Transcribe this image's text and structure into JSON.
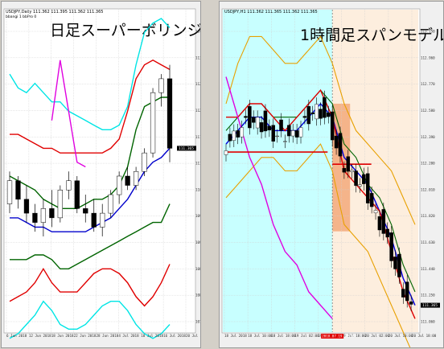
{
  "charts": {
    "left": {
      "symbol_label": "USDJPY,Daily",
      "ohlc_label": "111.362 111.395 111.362 111.365",
      "indicator_label": "bbangi 1 bbPro 0",
      "big_title": "日足スーパーボリンジャー",
      "y_ticks": [
        "114.090",
        "113.485",
        "112.880",
        "112.275",
        "111.670",
        "111.065",
        "110.460",
        "109.855",
        "109.250",
        "108.645",
        "108.040",
        "107.435"
      ],
      "x_ticks": [
        "6 Jun 2018",
        "12 Jun 2018",
        "18 Jun 2018",
        "22 Jun 2018",
        "28 Jun 2018",
        "4 Jul 2018",
        "10 Jul 2018",
        "16 Jul 2018",
        "20 Jul 2018"
      ],
      "price_tag": "111.365"
    },
    "right": {
      "symbol_label": "USDJPY,H1",
      "ohlc_label": "111.362 111.365 111.362 111.365",
      "big_title": "1時間足スパンモデル",
      "y_ticks": [
        "113.150",
        "112.960",
        "112.770",
        "112.580",
        "112.390",
        "112.200",
        "112.010",
        "111.820",
        "111.630",
        "111.440",
        "111.250",
        "111.060"
      ],
      "x_ticks": [
        "18 Jul 2018",
        "18 Jul 10:00",
        "18 Jul 18:00",
        "19 Jul 02:00",
        "19 Jul 10:00",
        "19 Jul 18:00",
        "20 Jul 02:00",
        "20 Jul 10:00",
        "20 Jul 18:00"
      ],
      "x_highlight": "2018.07.19 20:00",
      "price_tag": "111.365"
    }
  },
  "colors": {
    "daily_upper3": "#00e5e5",
    "daily_upper2": "#e00000",
    "daily_upper1": "#006400",
    "daily_mid": "#0000cc",
    "daily_lower1": "#006400",
    "daily_lower2": "#e00000",
    "daily_lower3": "#00e5e5",
    "chikou": "#e000e0",
    "span_red": "#e00000",
    "span_blue": "#0000dd",
    "hour_outer": "#e8a000",
    "hour_mid": "#006400",
    "cyan_bg": "#c8ffff",
    "peach_bg": "#fdeede",
    "orange_box": "#f5b48a"
  },
  "chart_data": [
    {
      "type": "line",
      "title": "日足スーパーボリンジャー",
      "symbol": "USDJPY,Daily",
      "x_range": [
        "2018-06-06",
        "2018-07-20"
      ],
      "ylim": [
        107.435,
        114.39
      ],
      "series": [
        {
          "values": [
            113.0,
            112.7,
            112.6,
            112.8,
            112.6,
            112.4,
            112.4,
            112.2,
            112.1,
            112.0,
            111.9,
            111.8,
            111.8,
            111.9,
            112.3,
            113.2,
            113.9,
            114.1,
            114.2,
            114.0
          ]
        },
        {
          "values": [
            111.7,
            111.7,
            111.6,
            111.5,
            111.4,
            111.4,
            111.3,
            111.3,
            111.3,
            111.3,
            111.3,
            111.3,
            111.4,
            111.6,
            112.2,
            112.9,
            113.2,
            113.3,
            113.2,
            113.1
          ]
        },
        {
          "values": [
            110.8,
            110.7,
            110.6,
            110.5,
            110.3,
            110.2,
            110.1,
            110.1,
            110.1,
            110.2,
            110.3,
            110.3,
            110.4,
            110.6,
            111.0,
            111.8,
            112.3,
            112.4,
            112.5,
            112.5
          ]
        },
        {
          "values": [
            109.9,
            109.9,
            109.8,
            109.7,
            109.7,
            109.6,
            109.6,
            109.6,
            109.6,
            109.6,
            109.7,
            109.8,
            109.9,
            110.1,
            110.3,
            110.6,
            110.9,
            111.1,
            111.2,
            111.4
          ]
        },
        {
          "values": [
            109.0,
            109.0,
            109.0,
            109.1,
            109.1,
            109.0,
            108.8,
            108.8,
            108.9,
            109.0,
            109.1,
            109.2,
            109.3,
            109.4,
            109.5,
            109.6,
            109.7,
            109.8,
            109.8,
            110.2
          ]
        },
        {
          "values": [
            108.1,
            108.2,
            108.3,
            108.5,
            108.8,
            108.5,
            108.3,
            108.3,
            108.3,
            108.5,
            108.7,
            108.8,
            108.8,
            108.7,
            108.5,
            108.2,
            108.0,
            108.2,
            108.5,
            108.9
          ]
        },
        {
          "values": [
            107.3,
            107.4,
            107.6,
            107.8,
            108.1,
            107.9,
            107.6,
            107.5,
            107.5,
            107.6,
            107.8,
            108.0,
            108.1,
            108.1,
            107.9,
            107.6,
            107.4,
            107.3,
            107.4,
            107.6
          ]
        },
        {
          "values": [
            null,
            null,
            null,
            null,
            null,
            112.0,
            113.3,
            112.2,
            111.1,
            111.0,
            null,
            null,
            null,
            null,
            null,
            null,
            null,
            null,
            null,
            null
          ]
        }
      ],
      "candles_ohlc": [
        [
          110.2,
          110.9,
          110.0,
          110.7
        ],
        [
          110.7,
          110.8,
          110.1,
          110.3
        ],
        [
          110.3,
          110.6,
          109.8,
          110.0
        ],
        [
          110.0,
          110.2,
          109.6,
          109.8
        ],
        [
          109.8,
          110.3,
          109.5,
          110.1
        ],
        [
          110.1,
          110.5,
          109.7,
          109.9
        ],
        [
          109.9,
          110.6,
          109.8,
          110.5
        ],
        [
          110.5,
          110.9,
          110.3,
          110.7
        ],
        [
          110.7,
          110.8,
          110.0,
          110.1
        ],
        [
          110.1,
          110.4,
          109.8,
          110.0
        ],
        [
          110.0,
          110.3,
          109.6,
          109.7
        ],
        [
          109.7,
          110.2,
          109.5,
          110.0
        ],
        [
          110.0,
          110.5,
          109.9,
          110.4
        ],
        [
          110.4,
          110.9,
          110.2,
          110.8
        ],
        [
          110.8,
          111.0,
          110.5,
          110.6
        ],
        [
          110.6,
          111.0,
          110.5,
          110.9
        ],
        [
          110.9,
          111.4,
          110.8,
          111.3
        ],
        [
          111.3,
          112.7,
          111.2,
          112.6
        ],
        [
          112.6,
          113.0,
          112.3,
          112.9
        ],
        [
          112.9,
          113.2,
          111.1,
          111.4
        ]
      ]
    },
    {
      "type": "line",
      "title": "1時間足スパンモデル",
      "symbol": "USDJPY,H1",
      "x_range": [
        "2018-07-18 00:00",
        "2018-07-20 20:00"
      ],
      "ylim": [
        110.9,
        113.3
      ],
      "series": [
        {
          "values": [
            112.6,
            112.9,
            113.1,
            113.1,
            113.0,
            112.9,
            112.9,
            113.0,
            113.1,
            112.9,
            112.6,
            112.4,
            112.3,
            112.2,
            112.1,
            111.9,
            111.7
          ]
        },
        {
          "values": [
            111.9,
            112.0,
            112.1,
            112.2,
            112.2,
            112.1,
            112.1,
            112.2,
            112.3,
            112.1,
            111.7,
            111.6,
            111.5,
            111.3,
            111.1,
            110.9,
            110.7
          ]
        },
        {
          "values": [
            112.4,
            112.5,
            112.6,
            112.6,
            112.5,
            112.5,
            112.5,
            112.6,
            112.7,
            112.6,
            112.3,
            112.2,
            112.0,
            111.9,
            111.7,
            111.4,
            111.2
          ]
        },
        {
          "values": [
            112.3,
            112.4,
            112.5,
            112.5,
            112.4,
            112.4,
            112.4,
            112.5,
            112.6,
            112.5,
            112.2,
            112.1,
            112.0,
            111.8,
            111.6,
            111.3,
            111.1
          ]
        },
        {
          "values": [
            112.5,
            112.5,
            112.6,
            112.6,
            112.5,
            112.4,
            112.5,
            112.6,
            112.7,
            112.5,
            112.1,
            112.0,
            111.9,
            111.8,
            111.5,
            111.2,
            111.0
          ]
        },
        {
          "values": [
            112.8,
            112.5,
            112.2,
            112.0,
            111.7,
            111.5,
            111.4,
            111.2,
            111.1,
            111.0,
            null,
            null,
            null,
            null,
            null,
            null,
            null
          ]
        }
      ],
      "span_levels": [
        {
          "from": "2018-07-18 00:00",
          "to": "2018-07-19 18:00",
          "value": 112.24
        },
        {
          "from": "2018-07-19 20:00",
          "to": "2018-07-20 08:00",
          "value": 112.15
        }
      ]
    }
  ]
}
